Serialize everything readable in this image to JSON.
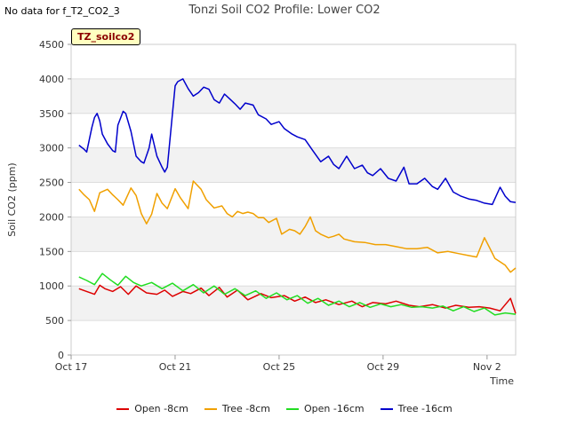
{
  "no_data_note": "No data for f_T2_CO2_3",
  "badge": "TZ_soilco2",
  "chart_data": {
    "type": "line",
    "title": "Tonzi Soil CO2 Profile: Lower CO2",
    "xlabel": "Time",
    "ylabel": "Soil CO2 (ppm)",
    "ylim": [
      0,
      4500
    ],
    "yticks": [
      0,
      500,
      1000,
      1500,
      2000,
      2500,
      3000,
      3500,
      4000,
      4500
    ],
    "xlim": [
      0,
      17.1
    ],
    "xticks": [
      {
        "value": 0,
        "label": "Oct 17"
      },
      {
        "value": 4,
        "label": "Oct 21"
      },
      {
        "value": 8,
        "label": "Oct 25"
      },
      {
        "value": 12,
        "label": "Oct 29"
      },
      {
        "value": 16,
        "label": "Nov 2"
      }
    ],
    "series": [
      {
        "name": "Open -8cm",
        "color": "#dd0000",
        "x": [
          0.3,
          0.6,
          0.9,
          1.1,
          1.3,
          1.6,
          1.9,
          2.2,
          2.5,
          2.9,
          3.3,
          3.6,
          3.9,
          4.3,
          4.6,
          5.0,
          5.3,
          5.7,
          6.0,
          6.4,
          6.8,
          7.3,
          7.7,
          8.2,
          8.6,
          9.0,
          9.4,
          9.8,
          10.3,
          10.8,
          11.2,
          11.6,
          12.1,
          12.5,
          13.0,
          13.4,
          13.9,
          14.4,
          14.8,
          15.3,
          15.7,
          16.1,
          16.5,
          16.9,
          17.1
        ],
        "y": [
          960,
          920,
          880,
          1010,
          960,
          920,
          990,
          880,
          1000,
          900,
          880,
          940,
          850,
          920,
          890,
          970,
          860,
          980,
          840,
          940,
          800,
          890,
          830,
          860,
          780,
          840,
          760,
          800,
          730,
          780,
          700,
          760,
          740,
          780,
          720,
          700,
          730,
          680,
          720,
          690,
          700,
          680,
          640,
          820,
          600
        ]
      },
      {
        "name": "Tree -8cm",
        "color": "#f0a000",
        "x": [
          0.3,
          0.5,
          0.7,
          0.9,
          1.1,
          1.4,
          1.6,
          1.8,
          2.0,
          2.3,
          2.5,
          2.7,
          2.9,
          3.1,
          3.3,
          3.5,
          3.7,
          4.0,
          4.2,
          4.5,
          4.7,
          5.0,
          5.2,
          5.5,
          5.8,
          6.0,
          6.2,
          6.4,
          6.6,
          6.8,
          7.0,
          7.2,
          7.4,
          7.6,
          7.9,
          8.1,
          8.4,
          8.6,
          8.8,
          9.0,
          9.2,
          9.4,
          9.6,
          9.9,
          10.1,
          10.3,
          10.5,
          10.9,
          11.3,
          11.7,
          12.1,
          12.5,
          12.9,
          13.3,
          13.7,
          14.1,
          14.5,
          14.9,
          15.3,
          15.6,
          15.9,
          16.1,
          16.3,
          16.5,
          16.7,
          16.9,
          17.1
        ],
        "y": [
          2400,
          2320,
          2250,
          2080,
          2350,
          2400,
          2320,
          2250,
          2170,
          2420,
          2310,
          2050,
          1900,
          2040,
          2340,
          2200,
          2120,
          2410,
          2280,
          2120,
          2520,
          2400,
          2250,
          2130,
          2160,
          2050,
          2000,
          2080,
          2050,
          2070,
          2050,
          1990,
          1990,
          1920,
          1980,
          1750,
          1820,
          1800,
          1750,
          1860,
          2000,
          1800,
          1750,
          1700,
          1720,
          1750,
          1680,
          1640,
          1630,
          1600,
          1600,
          1570,
          1540,
          1540,
          1560,
          1480,
          1500,
          1470,
          1440,
          1420,
          1700,
          1550,
          1400,
          1350,
          1300,
          1200,
          1260
        ]
      },
      {
        "name": "Open -16cm",
        "color": "#22dd22",
        "x": [
          0.3,
          0.6,
          0.9,
          1.2,
          1.5,
          1.8,
          2.1,
          2.4,
          2.7,
          3.1,
          3.5,
          3.9,
          4.3,
          4.7,
          5.1,
          5.5,
          5.9,
          6.3,
          6.7,
          7.1,
          7.5,
          7.9,
          8.3,
          8.7,
          9.1,
          9.5,
          9.9,
          10.3,
          10.7,
          11.1,
          11.5,
          11.9,
          12.3,
          12.7,
          13.1,
          13.5,
          13.9,
          14.3,
          14.7,
          15.1,
          15.5,
          15.9,
          16.3,
          16.7,
          17.1
        ],
        "y": [
          1130,
          1080,
          1020,
          1180,
          1090,
          1010,
          1140,
          1050,
          1000,
          1050,
          960,
          1040,
          930,
          1020,
          900,
          1000,
          880,
          960,
          860,
          930,
          820,
          900,
          800,
          860,
          750,
          820,
          720,
          780,
          700,
          760,
          690,
          740,
          700,
          730,
          690,
          700,
          680,
          710,
          640,
          700,
          630,
          680,
          580,
          610,
          590
        ]
      },
      {
        "name": "Tree -16cm",
        "color": "#0000cc",
        "x": [
          0.3,
          0.5,
          0.6,
          0.8,
          0.9,
          1.0,
          1.1,
          1.2,
          1.4,
          1.6,
          1.7,
          1.8,
          2.0,
          2.1,
          2.3,
          2.5,
          2.7,
          2.8,
          3.0,
          3.1,
          3.3,
          3.5,
          3.6,
          3.7,
          3.9,
          4.0,
          4.1,
          4.3,
          4.5,
          4.7,
          4.9,
          5.1,
          5.3,
          5.5,
          5.7,
          5.9,
          6.1,
          6.3,
          6.5,
          6.7,
          7.0,
          7.2,
          7.5,
          7.7,
          8.0,
          8.2,
          8.5,
          8.7,
          9.0,
          9.3,
          9.6,
          9.9,
          10.1,
          10.3,
          10.6,
          10.9,
          11.2,
          11.4,
          11.6,
          11.9,
          12.2,
          12.5,
          12.8,
          13.0,
          13.3,
          13.6,
          13.9,
          14.1,
          14.4,
          14.7,
          15.0,
          15.3,
          15.6,
          15.9,
          16.2,
          16.5,
          16.7,
          16.9,
          17.1
        ],
        "y": [
          3040,
          2980,
          2940,
          3300,
          3440,
          3500,
          3390,
          3200,
          3060,
          2960,
          2940,
          3330,
          3530,
          3500,
          3240,
          2880,
          2800,
          2780,
          3000,
          3200,
          2880,
          2720,
          2650,
          2720,
          3500,
          3900,
          3960,
          4000,
          3860,
          3750,
          3800,
          3880,
          3850,
          3700,
          3650,
          3780,
          3710,
          3640,
          3560,
          3650,
          3620,
          3480,
          3420,
          3340,
          3380,
          3280,
          3200,
          3160,
          3120,
          2960,
          2800,
          2880,
          2760,
          2700,
          2880,
          2700,
          2750,
          2640,
          2600,
          2700,
          2560,
          2520,
          2720,
          2480,
          2480,
          2560,
          2440,
          2400,
          2560,
          2360,
          2300,
          2260,
          2240,
          2200,
          2180,
          2430,
          2300,
          2220,
          2210
        ]
      }
    ]
  }
}
